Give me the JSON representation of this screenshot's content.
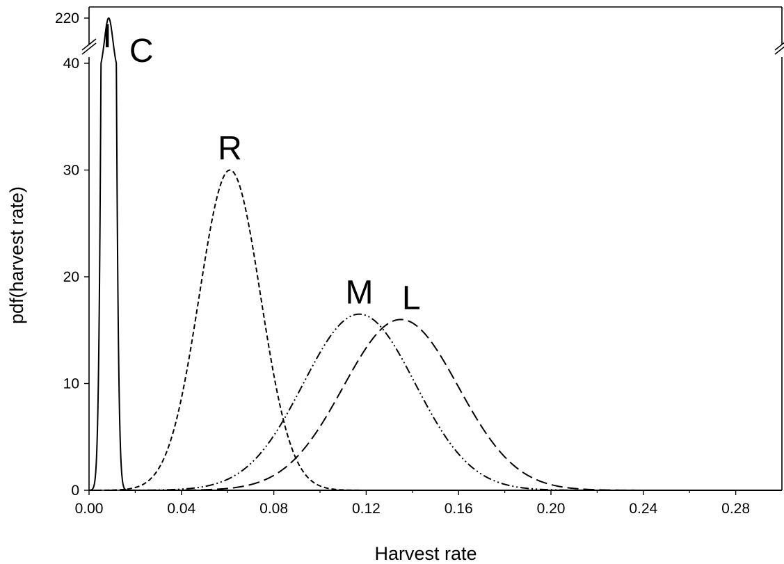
{
  "chart_data": {
    "type": "line",
    "xlabel": "Harvest rate",
    "ylabel": "pdf(harvest rate)",
    "xlim": [
      0,
      0.3
    ],
    "ylim": [
      0,
      40
    ],
    "y_break": {
      "lower_max": 40,
      "upper_tick": 220
    },
    "x_ticks": [
      "0.00",
      "0.04",
      "0.08",
      "0.12",
      "0.16",
      "0.20",
      "0.24",
      "0.28"
    ],
    "y_ticks": [
      "0",
      "10",
      "20",
      "30",
      "40",
      "220"
    ],
    "grid": false,
    "legend": "none",
    "series": [
      {
        "name": "I",
        "style": "solid",
        "peak_x": 0.0085,
        "peak_y": 220,
        "sd": 0.0018
      },
      {
        "name": "C",
        "style": "solid",
        "peak_x": 0.0085,
        "peak_y": 220,
        "sd": 0.0018
      },
      {
        "name": "R",
        "style": "short-dash",
        "peak_x": 0.061,
        "peak_y": 30,
        "sd": 0.0133
      },
      {
        "name": "M",
        "style": "dash-dot-dot",
        "peak_x": 0.117,
        "peak_y": 16.5,
        "sd": 0.0242
      },
      {
        "name": "L",
        "style": "long-dash",
        "peak_x": 0.135,
        "peak_y": 16,
        "sd": 0.0249
      }
    ]
  }
}
